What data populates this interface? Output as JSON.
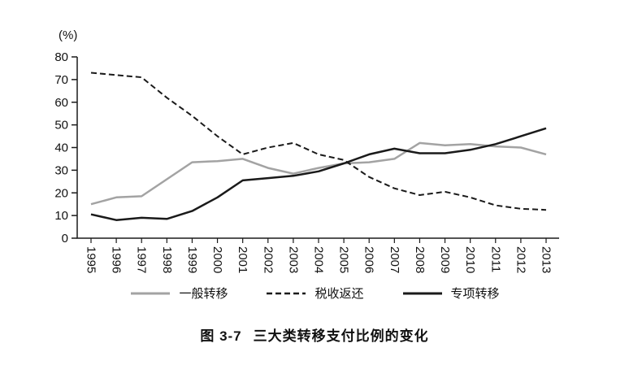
{
  "caption": {
    "number": "图 3-7",
    "title": "三大类转移支付比例的变化"
  },
  "chart_data": {
    "type": "line",
    "title": "图 3-7 三大类转移支付比例的变化",
    "ylabel": "(%)",
    "xlabel": "",
    "ylim": [
      0,
      80
    ],
    "ytick_step": 10,
    "grid": false,
    "legend_position": "bottom",
    "axis_color": "#1a1a1a",
    "x": [
      "1995",
      "1996",
      "1997",
      "1998",
      "1999",
      "2000",
      "2001",
      "2002",
      "2003",
      "2004",
      "2005",
      "2006",
      "2007",
      "2008",
      "2009",
      "2010",
      "2011",
      "2012",
      "2013"
    ],
    "series": [
      {
        "name": "一般转移",
        "color": "#a3a3a3",
        "dash": "none",
        "width": 2.5,
        "values": [
          15,
          18,
          18.5,
          26,
          33.5,
          34,
          35,
          31,
          28.5,
          31,
          33,
          33.5,
          35,
          42,
          41,
          41.5,
          40.5,
          40,
          37
        ]
      },
      {
        "name": "税收返还",
        "color": "#1a1a1a",
        "dash": "7 4",
        "width": 2,
        "values": [
          73,
          72,
          71,
          62,
          54,
          45,
          37,
          40,
          42,
          37,
          34.5,
          27,
          22,
          19,
          20.5,
          18,
          14.5,
          13,
          12.5
        ]
      },
      {
        "name": "专项转移",
        "color": "#1a1a1a",
        "dash": "none",
        "width": 2.5,
        "values": [
          10.5,
          8,
          9,
          8.5,
          12,
          18,
          25.5,
          26.5,
          27.5,
          29.5,
          33,
          37,
          39.5,
          37.5,
          37.5,
          39,
          41.5,
          45,
          48.5
        ]
      }
    ]
  }
}
